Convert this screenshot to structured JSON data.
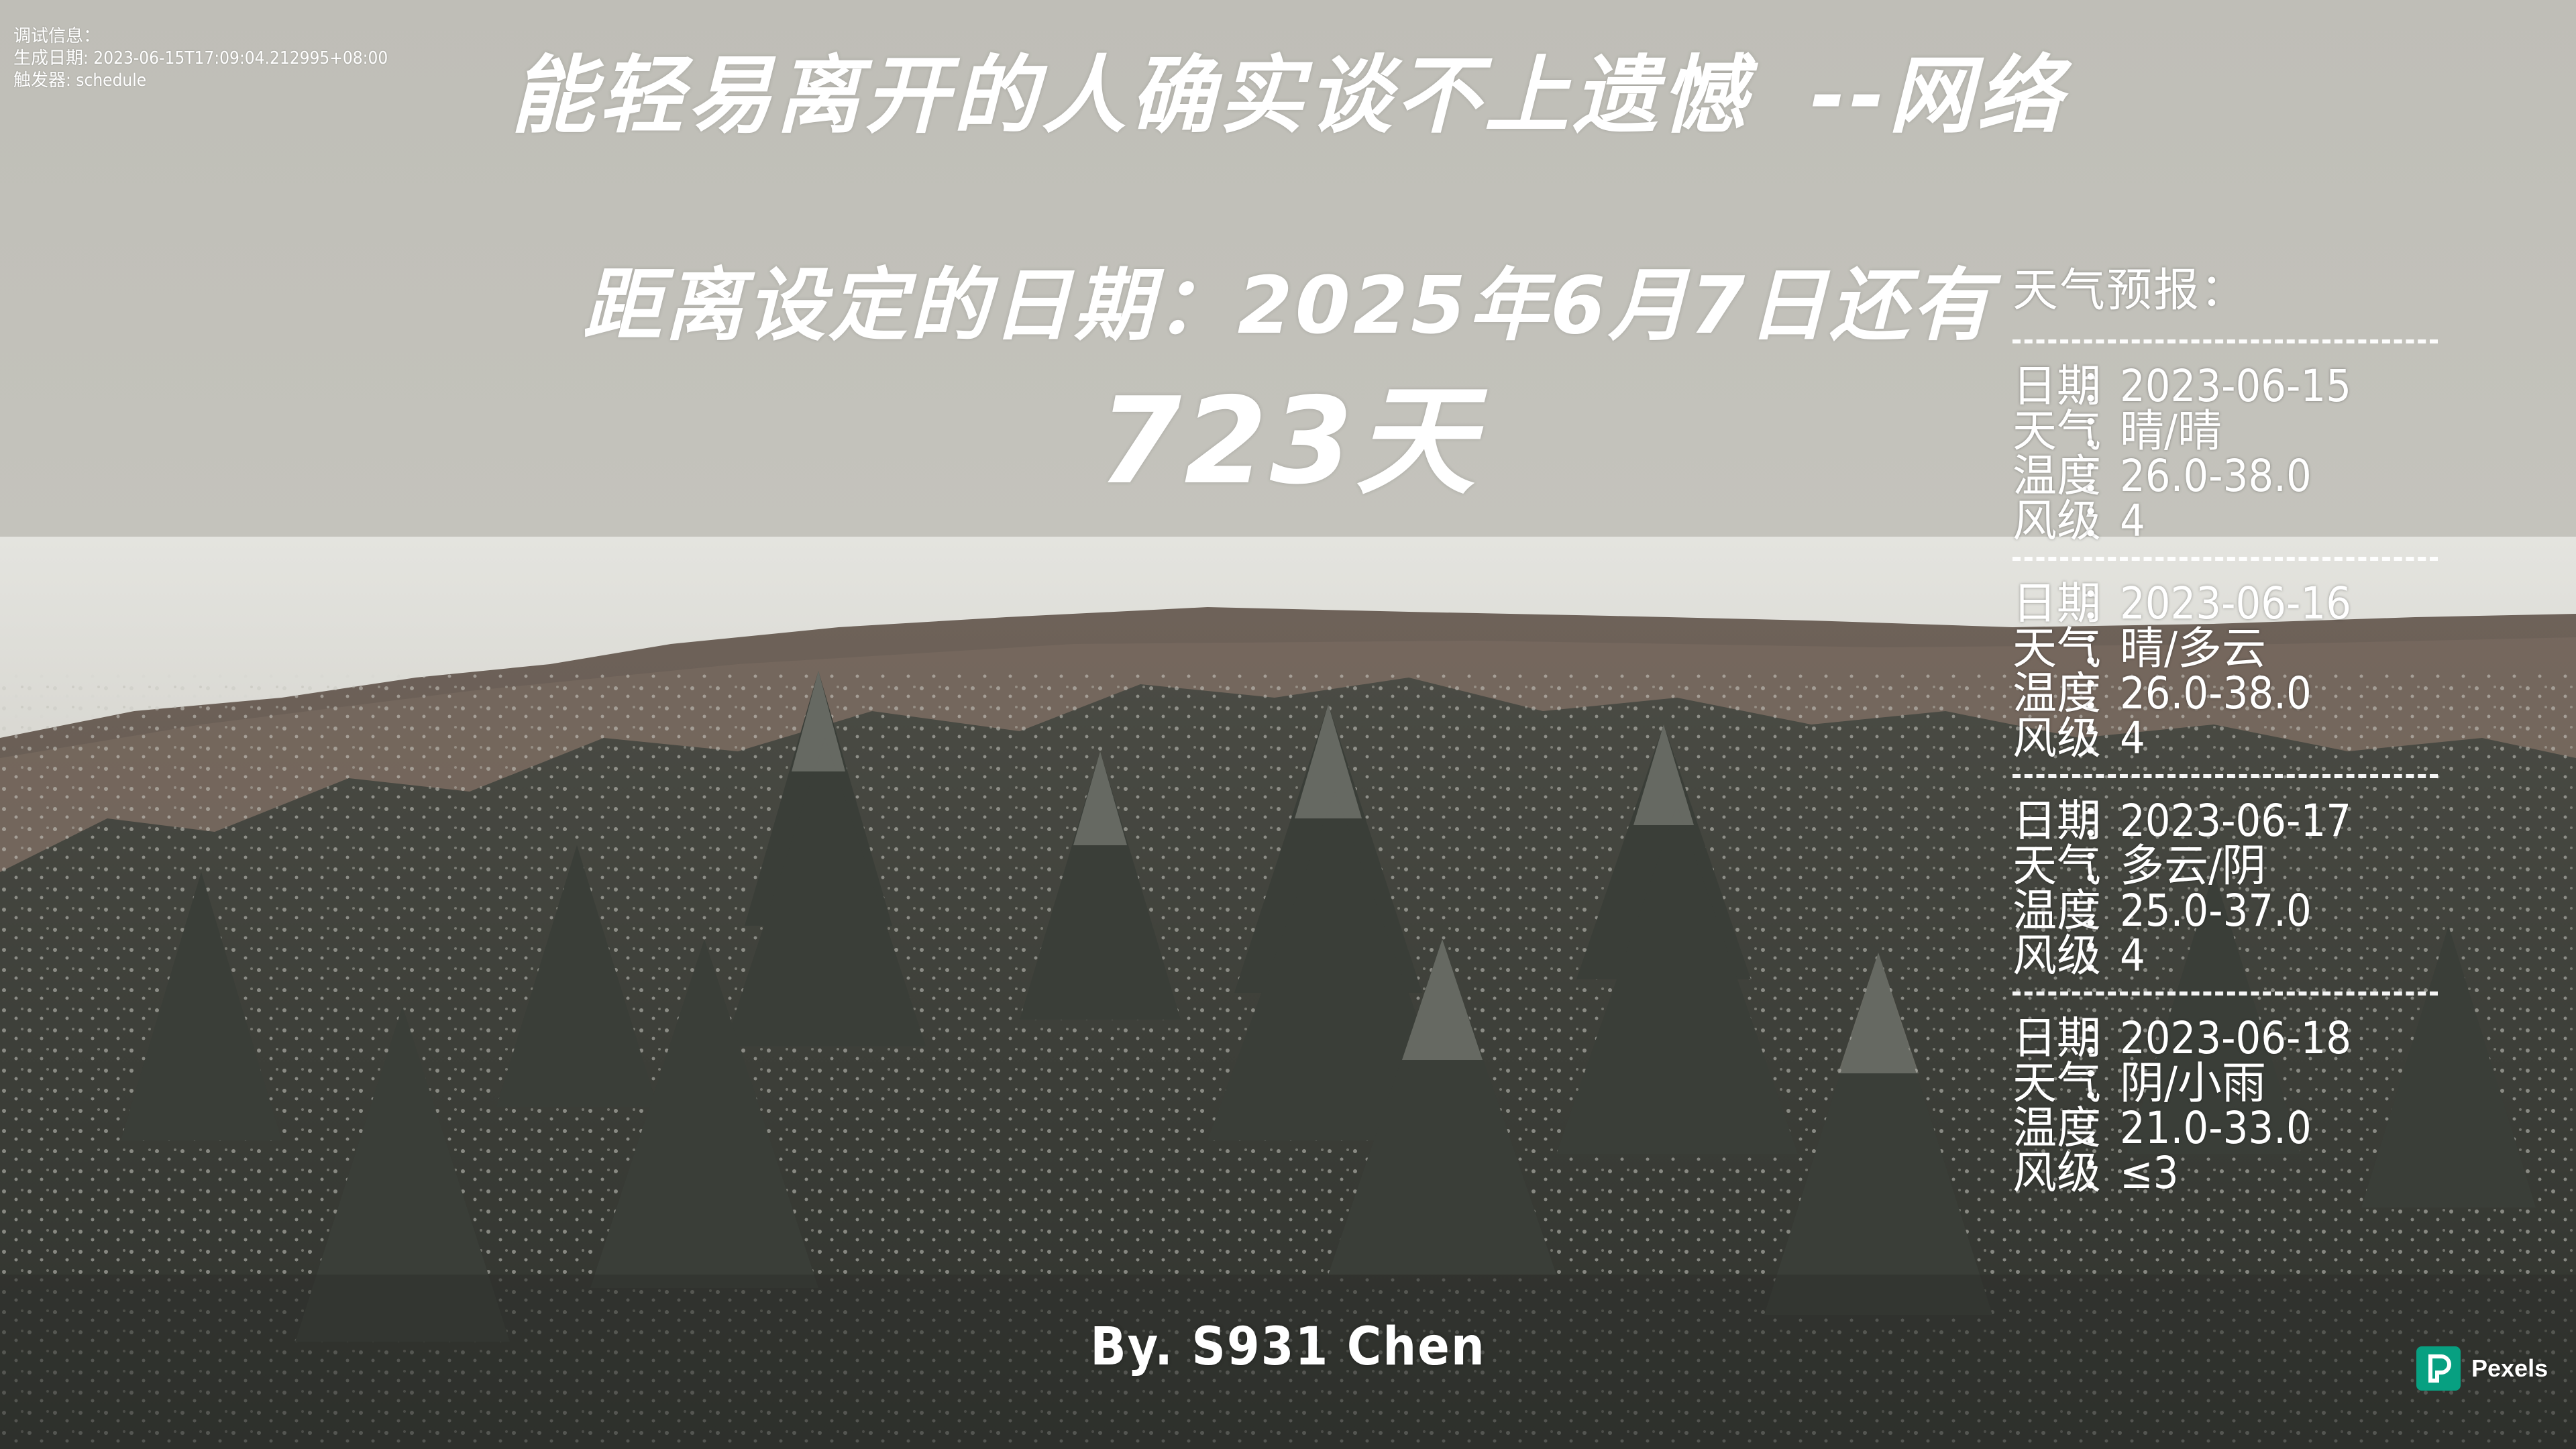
{
  "debug": {
    "title": "调试信息：",
    "generated": "生成日期: 2023-06-15T17:09:04.212995+08:00",
    "trigger": "触发器: schedule"
  },
  "quote": {
    "text": "能轻易离开的人确实谈不上遗憾",
    "source": "--网络"
  },
  "countdown": {
    "line": "距离设定的日期：2025年6月7日还有",
    "days": "723天"
  },
  "weather": {
    "title": "天气预报：",
    "labels": {
      "date": "日期",
      "weather": "天气",
      "temperature": "温度",
      "wind": "风级",
      "colon": "："
    },
    "days": [
      {
        "date": "2023-06-15",
        "weather": "晴/晴",
        "temperature": "26.0-38.0",
        "wind": "4"
      },
      {
        "date": "2023-06-16",
        "weather": "晴/多云",
        "temperature": "26.0-38.0",
        "wind": "4"
      },
      {
        "date": "2023-06-17",
        "weather": "多云/阴",
        "temperature": "25.0-37.0",
        "wind": "4"
      },
      {
        "date": "2023-06-18",
        "weather": "阴/小雨",
        "temperature": "21.0-33.0",
        "wind": "≤3"
      }
    ]
  },
  "author": "By. S931 Chen",
  "badge": {
    "name": "Pexels",
    "icon": "pexels-logo-icon",
    "color": "#07a081"
  },
  "colors": {
    "sky": "#c3c2bb",
    "text": "#ffffff"
  }
}
